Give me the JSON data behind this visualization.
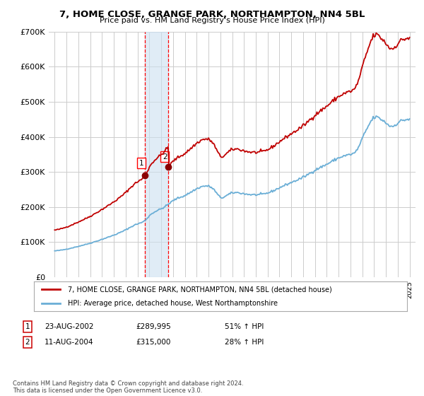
{
  "title": "7, HOME CLOSE, GRANGE PARK, NORTHAMPTON, NN4 5BL",
  "subtitle": "Price paid vs. HM Land Registry's House Price Index (HPI)",
  "footer": "Contains HM Land Registry data © Crown copyright and database right 2024.\nThis data is licensed under the Open Government Licence v3.0.",
  "legend_line1": "7, HOME CLOSE, GRANGE PARK, NORTHAMPTON, NN4 5BL (detached house)",
  "legend_line2": "HPI: Average price, detached house, West Northamptonshire",
  "transactions": [
    {
      "id": 1,
      "date": "23-AUG-2002",
      "price": "£289,995",
      "pct": "51%",
      "dir": "↑"
    },
    {
      "id": 2,
      "date": "11-AUG-2004",
      "price": "£315,000",
      "pct": "28%",
      "dir": "↑"
    }
  ],
  "sale_dates": [
    2002.64,
    2004.61
  ],
  "sale_prices": [
    289995,
    315000
  ],
  "hpi_color": "#6aaed6",
  "price_color": "#c00000",
  "marker_color": "#8b0000",
  "vline_color": "#ff0000",
  "shade_color": "#cce0f0",
  "ylim": [
    0,
    700000
  ],
  "yticks": [
    0,
    100000,
    200000,
    300000,
    400000,
    500000,
    600000,
    700000
  ],
  "ytick_labels": [
    "£0",
    "£100K",
    "£200K",
    "£300K",
    "£400K",
    "£500K",
    "£600K",
    "£700K"
  ],
  "xlim": [
    1994.5,
    2025.5
  ],
  "background_color": "#ffffff",
  "grid_color": "#cccccc"
}
